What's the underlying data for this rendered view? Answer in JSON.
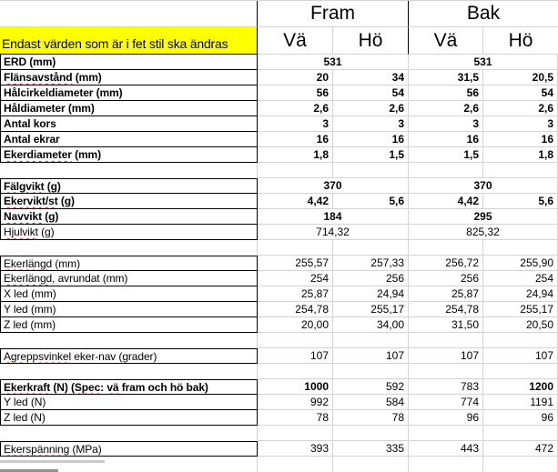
{
  "colors": {
    "grid": "#d4d4d4",
    "border": "#000000",
    "squiggle": "#e03030",
    "note_bg": "#ffff00"
  },
  "header": {
    "groups": [
      {
        "label": "Fram"
      },
      {
        "label": "Bak"
      }
    ],
    "subcolumns": [
      "Vä",
      "Hö",
      "Vä",
      "Hö"
    ],
    "note": "Endast värden som är i fet stil ska ändras"
  },
  "rows": [
    {
      "type": "data",
      "block_start": false,
      "label_bold": true,
      "merged": true,
      "bold_values": true,
      "label": [
        [
          "ERD (mm)",
          false
        ]
      ],
      "values": [
        "531",
        "531"
      ]
    },
    {
      "type": "data",
      "label_bold": true,
      "bold_values": true,
      "label": [
        [
          "Flänsavstånd",
          true
        ],
        [
          " (mm)",
          false
        ]
      ],
      "values": [
        "20",
        "34",
        "31,5",
        "20,5"
      ]
    },
    {
      "type": "data",
      "label_bold": true,
      "bold_values": true,
      "label": [
        [
          "Hålcirkeldiameter (mm)",
          false
        ]
      ],
      "values": [
        "56",
        "54",
        "56",
        "54"
      ]
    },
    {
      "type": "data",
      "label_bold": true,
      "bold_values": true,
      "label": [
        [
          "Håldiameter (mm)",
          false
        ]
      ],
      "values": [
        "2,6",
        "2,6",
        "2,6",
        "2,6"
      ]
    },
    {
      "type": "data",
      "label_bold": true,
      "bold_values": true,
      "label": [
        [
          "Antal kors",
          false
        ]
      ],
      "values": [
        "3",
        "3",
        "3",
        "3"
      ]
    },
    {
      "type": "data",
      "label_bold": true,
      "bold_values": true,
      "label": [
        [
          "Antal ekrar",
          false
        ]
      ],
      "values": [
        "16",
        "16",
        "16",
        "16"
      ]
    },
    {
      "type": "data",
      "label_bold": true,
      "bold_values": true,
      "label": [
        [
          "Ekerdiameter",
          true
        ],
        [
          " (mm)",
          false
        ]
      ],
      "values": [
        "1,8",
        "1,5",
        "1,5",
        "1,8"
      ]
    },
    {
      "type": "spacer"
    },
    {
      "type": "data",
      "block_start": true,
      "label_bold": true,
      "merged": true,
      "bold_values": true,
      "label": [
        [
          "Fälgvikt",
          true
        ],
        [
          " (g)",
          false
        ]
      ],
      "values": [
        "370",
        "370"
      ]
    },
    {
      "type": "data",
      "label_bold": true,
      "bold_values": true,
      "label": [
        [
          "Ekervikt/st",
          true
        ],
        [
          " (g)",
          false
        ]
      ],
      "values": [
        "4,42",
        "5,6",
        "4,42",
        "5,6"
      ]
    },
    {
      "type": "data",
      "label_bold": true,
      "merged": true,
      "bold_values": true,
      "label": [
        [
          "Navvikt",
          true
        ],
        [
          " (g)",
          false
        ]
      ],
      "values": [
        "184",
        "295"
      ]
    },
    {
      "type": "data",
      "label_bold": false,
      "merged": true,
      "bold_values": false,
      "label": [
        [
          "Hjulvikt",
          true
        ],
        [
          " (g)",
          false
        ]
      ],
      "values": [
        "714,32",
        "825,32"
      ]
    },
    {
      "type": "spacer"
    },
    {
      "type": "data",
      "block_start": true,
      "label_bold": false,
      "bold_values": false,
      "label": [
        [
          "Ekerlängd",
          true
        ],
        [
          " (mm)",
          false
        ]
      ],
      "values": [
        "255,57",
        "257,33",
        "256,72",
        "255,90"
      ]
    },
    {
      "type": "data",
      "label_bold": false,
      "bold_values": false,
      "label": [
        [
          "Ekerlängd",
          true
        ],
        [
          ", avrundat (mm)",
          false
        ]
      ],
      "values": [
        "254",
        "256",
        "256",
        "254"
      ]
    },
    {
      "type": "data",
      "label_bold": false,
      "bold_values": false,
      "label": [
        [
          "X led (mm)",
          false
        ]
      ],
      "values": [
        "25,87",
        "24,94",
        "25,87",
        "24,94"
      ]
    },
    {
      "type": "data",
      "label_bold": false,
      "bold_values": false,
      "label": [
        [
          "Y led (mm)",
          false
        ]
      ],
      "values": [
        "254,78",
        "255,17",
        "254,78",
        "255,17"
      ]
    },
    {
      "type": "data",
      "label_bold": false,
      "bold_values": false,
      "label": [
        [
          "Z led (mm)",
          false
        ]
      ],
      "values": [
        "20,00",
        "34,00",
        "31,50",
        "20,50"
      ]
    },
    {
      "type": "spacer"
    },
    {
      "type": "data",
      "block_start": true,
      "label_bold": false,
      "bold_values": false,
      "label": [
        [
          "Agreppsvinkel",
          true
        ],
        [
          " eker-nav (grader)",
          false
        ]
      ],
      "values": [
        "107",
        "107",
        "107",
        "107"
      ]
    },
    {
      "type": "spacer"
    },
    {
      "type": "data",
      "block_start": true,
      "label_bold": true,
      "bold_values": false,
      "bold_mask": [
        true,
        false,
        false,
        true
      ],
      "label": [
        [
          "Ekerkraft",
          true
        ],
        [
          " (N) (",
          false
        ],
        [
          "Spec",
          true
        ],
        [
          ": ",
          false
        ],
        [
          "vä",
          true
        ],
        [
          " fram och hö bak)",
          false
        ]
      ],
      "values": [
        "1000",
        "592",
        "783",
        "1200"
      ]
    },
    {
      "type": "data",
      "label_bold": false,
      "bold_values": false,
      "label": [
        [
          "Y led (N)",
          false
        ]
      ],
      "values": [
        "992",
        "584",
        "774",
        "1191"
      ]
    },
    {
      "type": "data",
      "label_bold": false,
      "bold_values": false,
      "label": [
        [
          "Z led (N)",
          false
        ]
      ],
      "values": [
        "78",
        "78",
        "96",
        "96"
      ]
    },
    {
      "type": "spacer"
    },
    {
      "type": "data",
      "block_start": true,
      "label_bold": false,
      "bold_values": false,
      "label": [
        [
          "Ekerspänning",
          true
        ],
        [
          " (MPa)",
          false
        ]
      ],
      "values": [
        "393",
        "335",
        "443",
        "472"
      ]
    },
    {
      "type": "bottom"
    }
  ]
}
